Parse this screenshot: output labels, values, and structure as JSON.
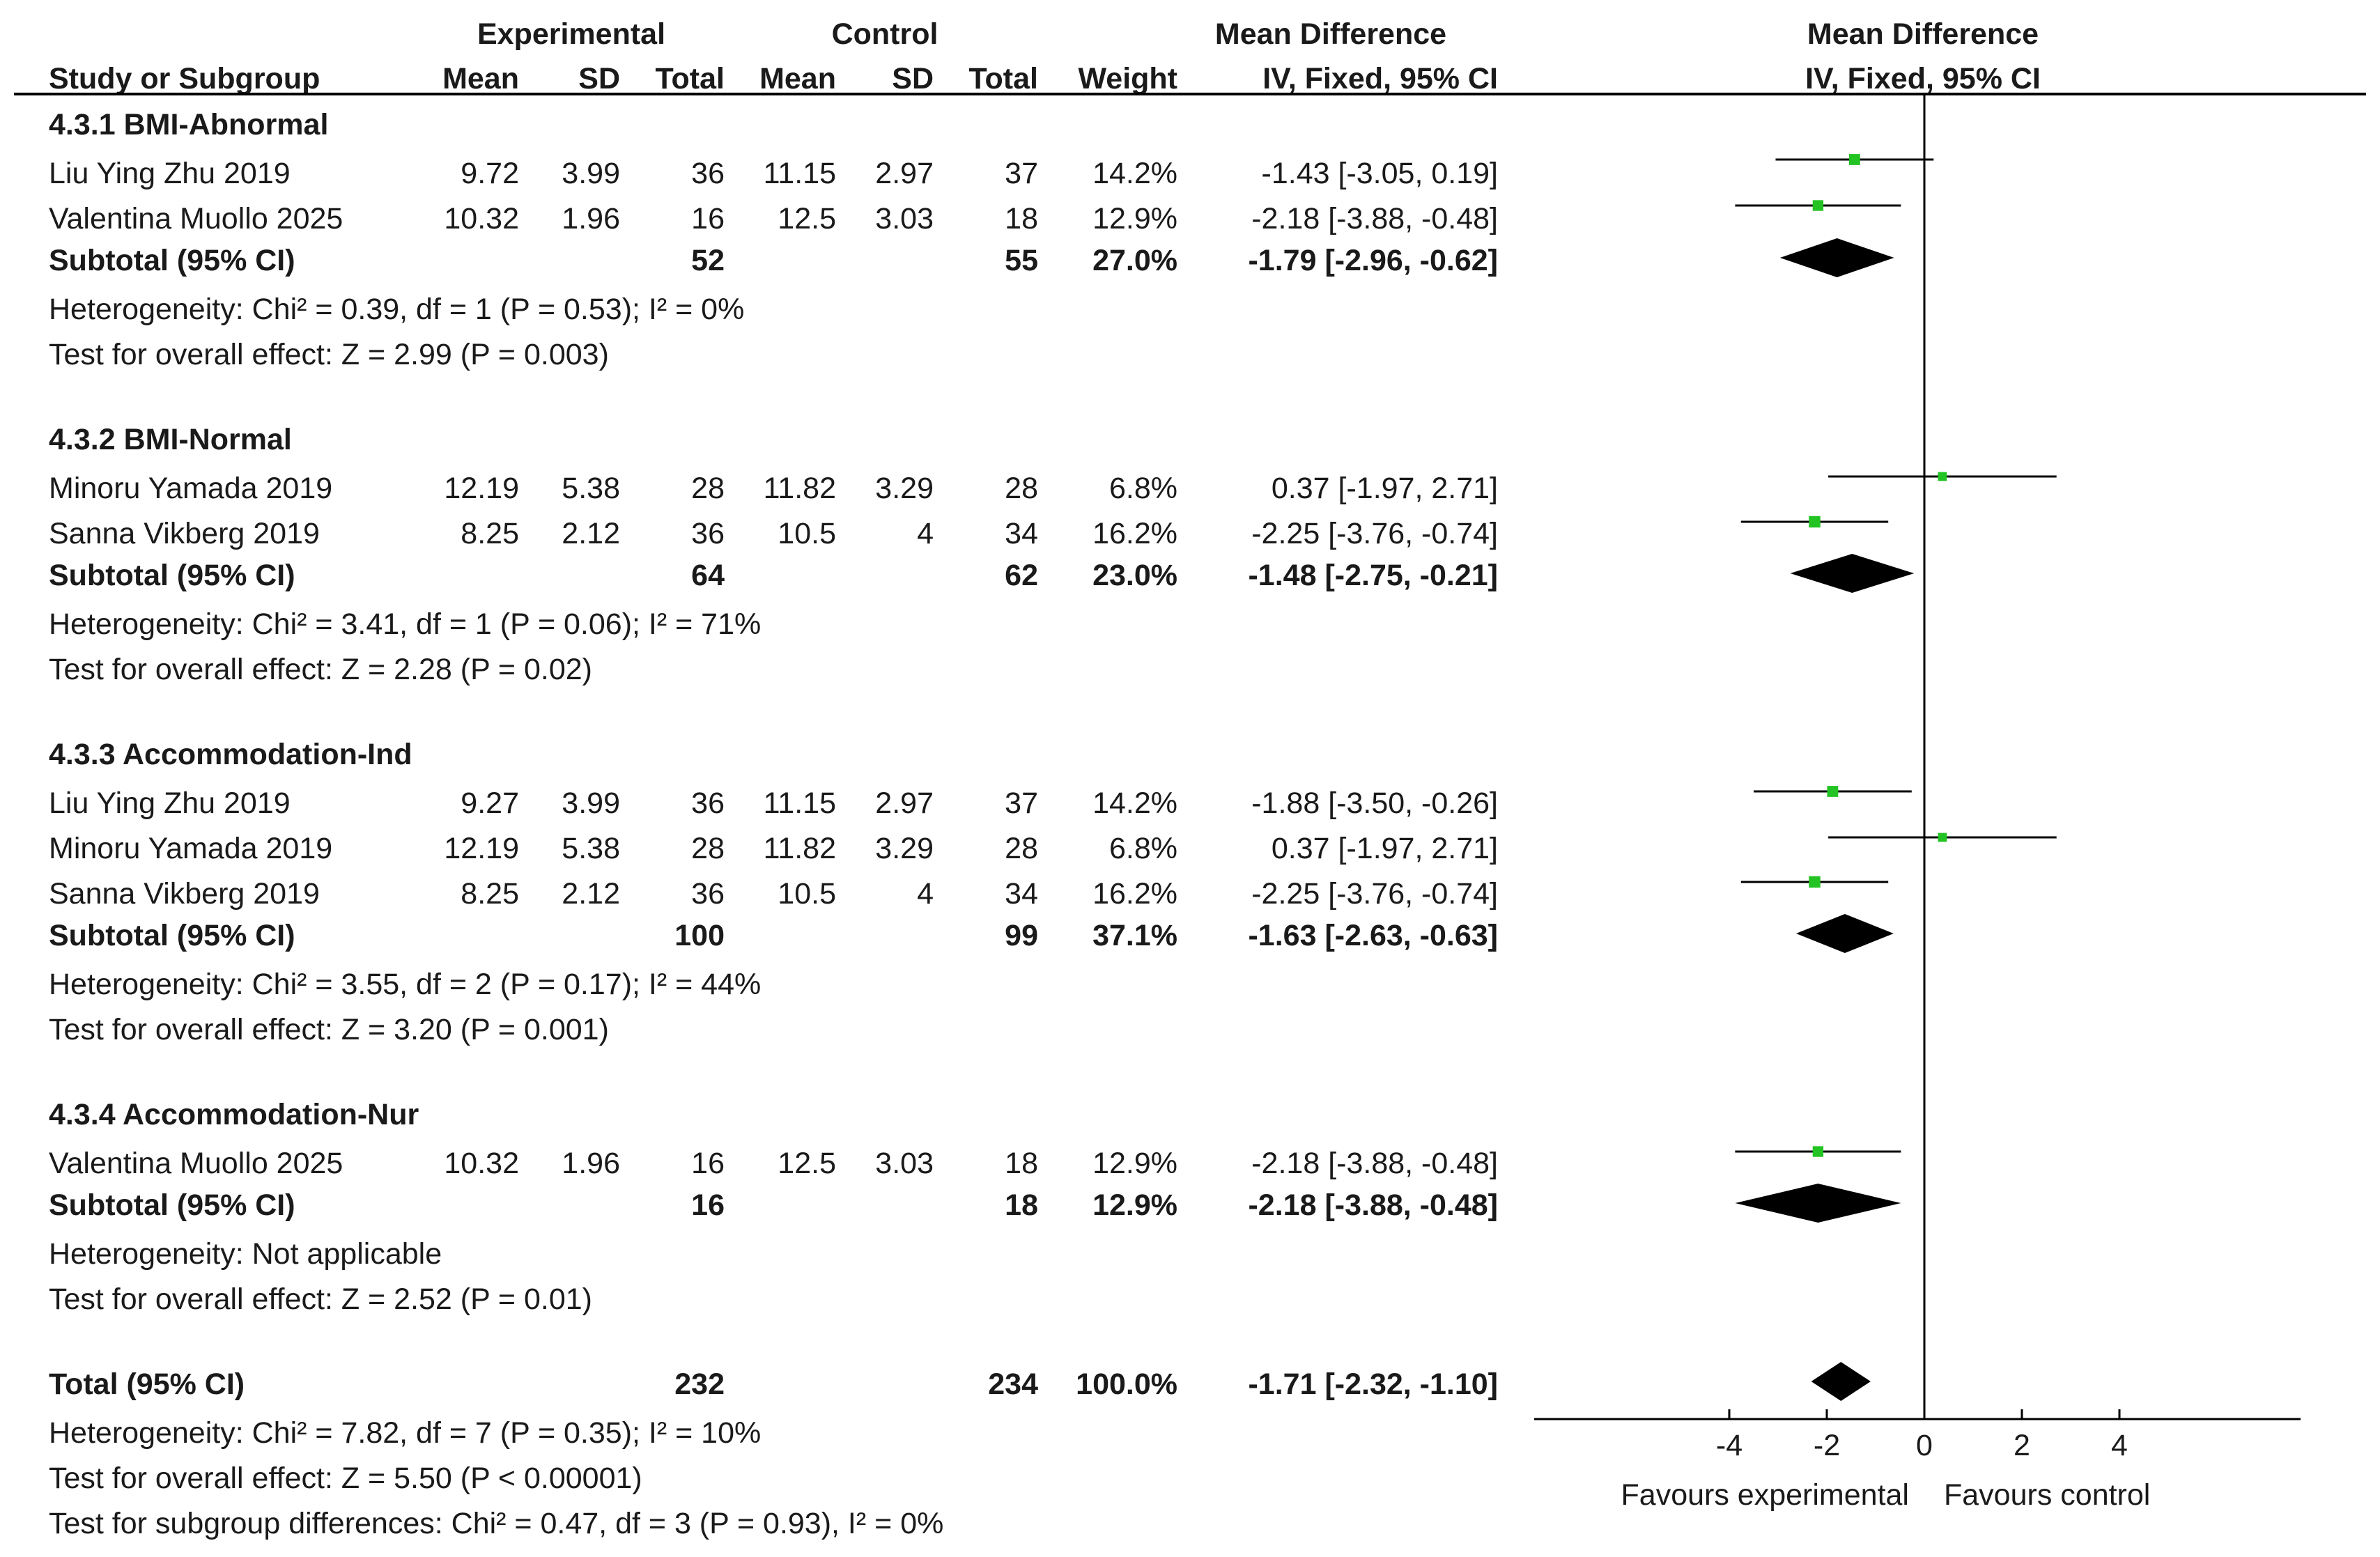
{
  "header": {
    "experimental": "Experimental",
    "control": "Control",
    "mean_difference": "Mean Difference",
    "study_or_subgroup": "Study or Subgroup",
    "mean": "Mean",
    "sd": "SD",
    "total": "Total",
    "weight": "Weight",
    "iv_fixed": "IV, Fixed, 95% CI",
    "plot_title": "Mean Difference",
    "plot_subtitle": "IV, Fixed, 95% CI"
  },
  "subgroups": [
    {
      "title": "4.3.1 BMI-Abnormal",
      "studies": [
        {
          "name": "Liu Ying Zhu 2019",
          "exp_mean": "9.72",
          "exp_sd": "3.99",
          "exp_total": "36",
          "ctl_mean": "11.15",
          "ctl_sd": "2.97",
          "ctl_total": "37",
          "weight": "14.2%",
          "ci_text": "-1.43 [-3.05, 0.19]"
        },
        {
          "name": "Valentina Muollo 2025",
          "exp_mean": "10.32",
          "exp_sd": "1.96",
          "exp_total": "16",
          "ctl_mean": "12.5",
          "ctl_sd": "3.03",
          "ctl_total": "18",
          "weight": "12.9%",
          "ci_text": "-2.18 [-3.88, -0.48]"
        }
      ],
      "subtotal": {
        "label": "Subtotal (95% CI)",
        "exp_total": "52",
        "ctl_total": "55",
        "weight": "27.0%",
        "ci_text": "-1.79 [-2.96, -0.62]"
      },
      "heterogeneity": "Heterogeneity: Chi² = 0.39, df = 1 (P = 0.53); I² = 0%",
      "overall": "Test for overall effect: Z = 2.99 (P = 0.003)"
    },
    {
      "title": "4.3.2 BMI-Normal",
      "studies": [
        {
          "name": "Minoru Yamada 2019",
          "exp_mean": "12.19",
          "exp_sd": "5.38",
          "exp_total": "28",
          "ctl_mean": "11.82",
          "ctl_sd": "3.29",
          "ctl_total": "28",
          "weight": "6.8%",
          "ci_text": "0.37 [-1.97, 2.71]"
        },
        {
          "name": "Sanna Vikberg 2019",
          "exp_mean": "8.25",
          "exp_sd": "2.12",
          "exp_total": "36",
          "ctl_mean": "10.5",
          "ctl_sd": "4",
          "ctl_total": "34",
          "weight": "16.2%",
          "ci_text": "-2.25 [-3.76, -0.74]"
        }
      ],
      "subtotal": {
        "label": "Subtotal (95% CI)",
        "exp_total": "64",
        "ctl_total": "62",
        "weight": "23.0%",
        "ci_text": "-1.48 [-2.75, -0.21]"
      },
      "heterogeneity": "Heterogeneity: Chi² = 3.41, df = 1 (P = 0.06); I² = 71%",
      "overall": "Test for overall effect: Z = 2.28 (P = 0.02)"
    },
    {
      "title": "4.3.3 Accommodation-Ind",
      "studies": [
        {
          "name": "Liu Ying Zhu 2019",
          "exp_mean": "9.27",
          "exp_sd": "3.99",
          "exp_total": "36",
          "ctl_mean": "11.15",
          "ctl_sd": "2.97",
          "ctl_total": "37",
          "weight": "14.2%",
          "ci_text": "-1.88 [-3.50, -0.26]"
        },
        {
          "name": "Minoru Yamada 2019",
          "exp_mean": "12.19",
          "exp_sd": "5.38",
          "exp_total": "28",
          "ctl_mean": "11.82",
          "ctl_sd": "3.29",
          "ctl_total": "28",
          "weight": "6.8%",
          "ci_text": "0.37 [-1.97, 2.71]"
        },
        {
          "name": "Sanna Vikberg 2019",
          "exp_mean": "8.25",
          "exp_sd": "2.12",
          "exp_total": "36",
          "ctl_mean": "10.5",
          "ctl_sd": "4",
          "ctl_total": "34",
          "weight": "16.2%",
          "ci_text": "-2.25 [-3.76, -0.74]"
        }
      ],
      "subtotal": {
        "label": "Subtotal (95% CI)",
        "exp_total": "100",
        "ctl_total": "99",
        "weight": "37.1%",
        "ci_text": "-1.63 [-2.63, -0.63]"
      },
      "heterogeneity": "Heterogeneity: Chi² = 3.55, df = 2 (P = 0.17); I² = 44%",
      "overall": "Test for overall effect: Z = 3.20 (P = 0.001)"
    },
    {
      "title": "4.3.4 Accommodation-Nur",
      "studies": [
        {
          "name": "Valentina Muollo 2025",
          "exp_mean": "10.32",
          "exp_sd": "1.96",
          "exp_total": "16",
          "ctl_mean": "12.5",
          "ctl_sd": "3.03",
          "ctl_total": "18",
          "weight": "12.9%",
          "ci_text": "-2.18 [-3.88, -0.48]"
        }
      ],
      "subtotal": {
        "label": "Subtotal (95% CI)",
        "exp_total": "16",
        "ctl_total": "18",
        "weight": "12.9%",
        "ci_text": "-2.18 [-3.88, -0.48]"
      },
      "heterogeneity": "Heterogeneity: Not applicable",
      "overall": "Test for overall effect: Z = 2.52 (P = 0.01)"
    }
  ],
  "total": {
    "label": "Total (95% CI)",
    "exp_total": "232",
    "ctl_total": "234",
    "weight": "100.0%",
    "ci_text": "-1.71 [-2.32, -1.10]",
    "heterogeneity": "Heterogeneity: Chi² = 7.82, df = 7 (P = 0.35); I² = 10%",
    "overall": "Test for overall effect: Z = 5.50 (P < 0.00001)",
    "subgroup_diff": "Test for subgroup differences: Chi² = 0.47, df = 3 (P = 0.93), I² = 0%"
  },
  "axis": {
    "favours_experimental": "Favours experimental",
    "favours_control": "Favours control"
  },
  "colors": {
    "marker": "#22c322",
    "line": "#000000",
    "text": "#1a1a1a"
  },
  "chart_data": {
    "type": "forest",
    "title": "Mean Difference",
    "subtitle": "IV, Fixed, 95% CI",
    "xlabel_left": "Favours experimental",
    "xlabel_right": "Favours control",
    "xlim": [
      -8,
      8
    ],
    "xticks": [
      -4,
      -2,
      0,
      2,
      4
    ],
    "null_line": 0,
    "series": [
      {
        "name": "Liu Ying Zhu 2019",
        "group": "4.3.1 BMI-Abnormal",
        "md": -1.43,
        "lo": -3.05,
        "hi": 0.19,
        "weight": 14.2
      },
      {
        "name": "Valentina Muollo 2025",
        "group": "4.3.1 BMI-Abnormal",
        "md": -2.18,
        "lo": -3.88,
        "hi": -0.48,
        "weight": 12.9
      },
      {
        "name": "Subtotal 4.3.1",
        "group": "4.3.1 BMI-Abnormal",
        "diamond": true,
        "md": -1.79,
        "lo": -2.96,
        "hi": -0.62,
        "weight": 27.0
      },
      {
        "name": "Minoru Yamada 2019",
        "group": "4.3.2 BMI-Normal",
        "md": 0.37,
        "lo": -1.97,
        "hi": 2.71,
        "weight": 6.8
      },
      {
        "name": "Sanna Vikberg 2019",
        "group": "4.3.2 BMI-Normal",
        "md": -2.25,
        "lo": -3.76,
        "hi": -0.74,
        "weight": 16.2
      },
      {
        "name": "Subtotal 4.3.2",
        "group": "4.3.2 BMI-Normal",
        "diamond": true,
        "md": -1.48,
        "lo": -2.75,
        "hi": -0.21,
        "weight": 23.0
      },
      {
        "name": "Liu Ying Zhu 2019",
        "group": "4.3.3 Accommodation-Ind",
        "md": -1.88,
        "lo": -3.5,
        "hi": -0.26,
        "weight": 14.2
      },
      {
        "name": "Minoru Yamada 2019",
        "group": "4.3.3 Accommodation-Ind",
        "md": 0.37,
        "lo": -1.97,
        "hi": 2.71,
        "weight": 6.8
      },
      {
        "name": "Sanna Vikberg 2019",
        "group": "4.3.3 Accommodation-Ind",
        "md": -2.25,
        "lo": -3.76,
        "hi": -0.74,
        "weight": 16.2
      },
      {
        "name": "Subtotal 4.3.3",
        "group": "4.3.3 Accommodation-Ind",
        "diamond": true,
        "md": -1.63,
        "lo": -2.63,
        "hi": -0.63,
        "weight": 37.1
      },
      {
        "name": "Valentina Muollo 2025",
        "group": "4.3.4 Accommodation-Nur",
        "md": -2.18,
        "lo": -3.88,
        "hi": -0.48,
        "weight": 12.9
      },
      {
        "name": "Subtotal 4.3.4",
        "group": "4.3.4 Accommodation-Nur",
        "diamond": true,
        "md": -2.18,
        "lo": -3.88,
        "hi": -0.48,
        "weight": 12.9
      },
      {
        "name": "Total",
        "group": "Total",
        "diamond": true,
        "md": -1.71,
        "lo": -2.32,
        "hi": -1.1,
        "weight": 100.0
      }
    ]
  }
}
